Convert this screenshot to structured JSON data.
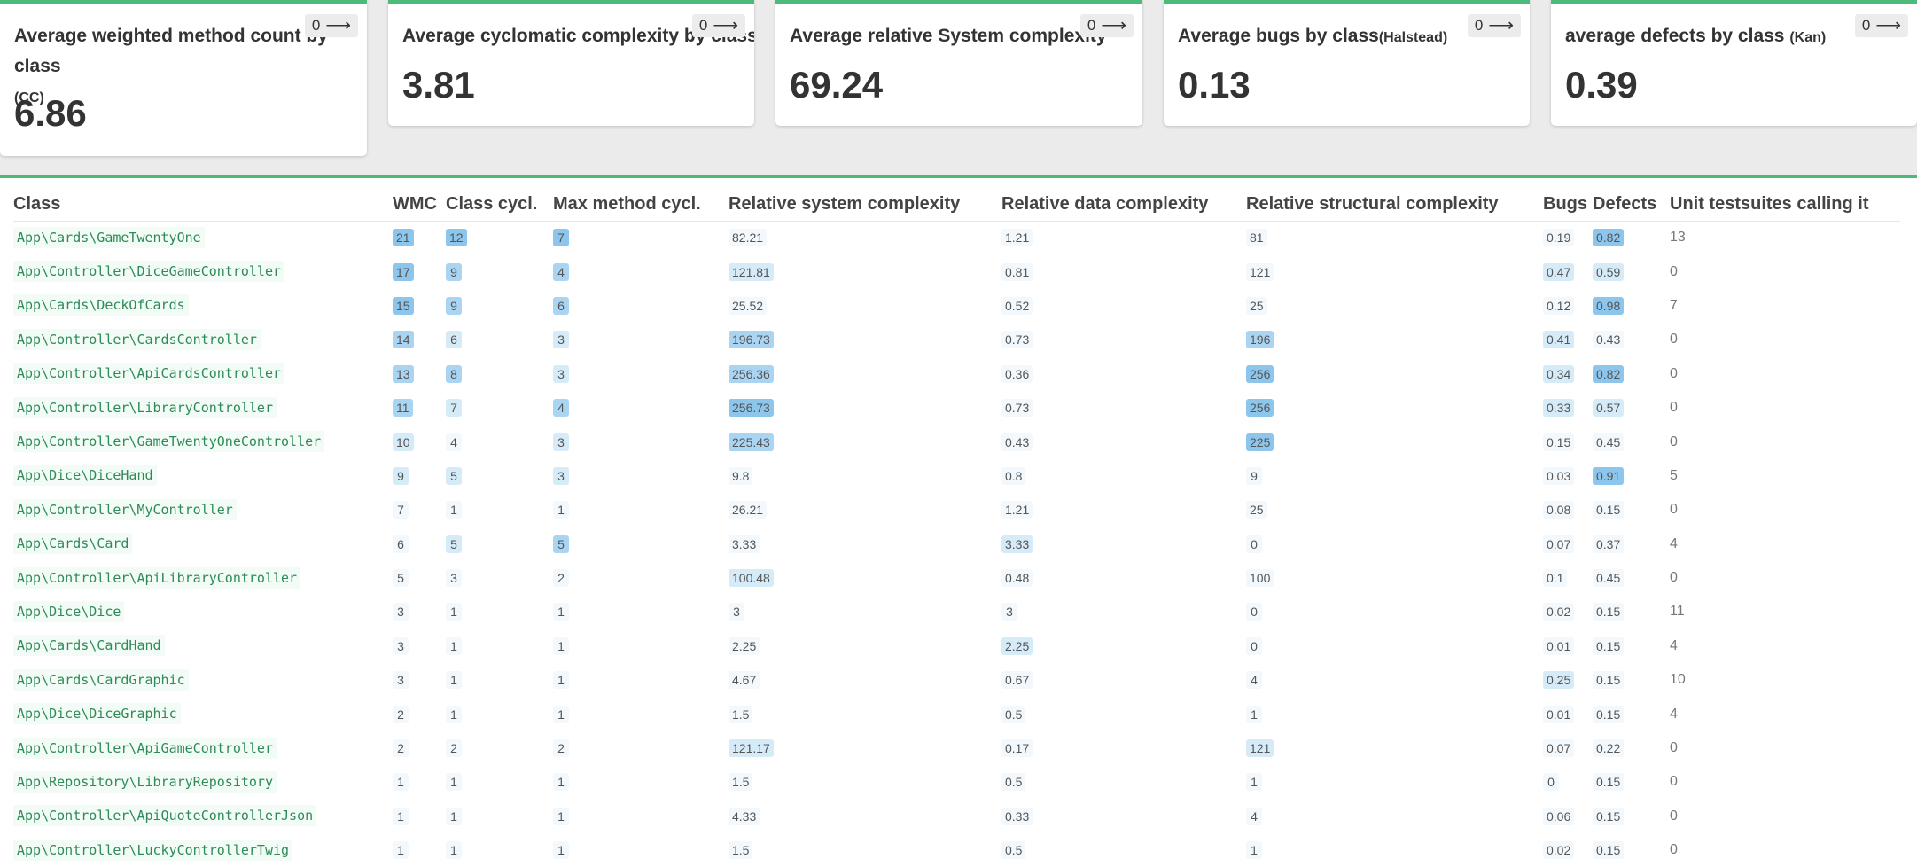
{
  "cards": [
    {
      "title": "Average weighted method count by class",
      "subtitle": "(CC)",
      "value": "6.86",
      "trend": "0"
    },
    {
      "title": "Average cyclomatic complexity by class",
      "value": "3.81",
      "trend": "0"
    },
    {
      "title": "Average relative System complexity",
      "value": "69.24",
      "trend": "0"
    },
    {
      "title": "Average bugs by class",
      "subtitle": "(Halstead)",
      "value": "0.13",
      "trend": "0"
    },
    {
      "title": "average defects by class ",
      "subtitle": "(Kan)",
      "value": "0.39",
      "trend": "0"
    }
  ],
  "table": {
    "headers": [
      "Class",
      "WMC",
      "Class cycl.",
      "Max method cycl.",
      "Relative system complexity",
      "Relative data complexity",
      "Relative structural complexity",
      "Bugs",
      "Defects",
      "Unit testsuites calling it"
    ],
    "rows": [
      [
        "App\\Cards\\GameTwentyOne",
        "21",
        "12",
        "7",
        "82.21",
        "1.21",
        "81",
        "0.19",
        "0.82",
        "13"
      ],
      [
        "App\\Controller\\DiceGameController",
        "17",
        "9",
        "4",
        "121.81",
        "0.81",
        "121",
        "0.47",
        "0.59",
        "0"
      ],
      [
        "App\\Cards\\DeckOfCards",
        "15",
        "9",
        "6",
        "25.52",
        "0.52",
        "25",
        "0.12",
        "0.98",
        "7"
      ],
      [
        "App\\Controller\\CardsController",
        "14",
        "6",
        "3",
        "196.73",
        "0.73",
        "196",
        "0.41",
        "0.43",
        "0"
      ],
      [
        "App\\Controller\\ApiCardsController",
        "13",
        "8",
        "3",
        "256.36",
        "0.36",
        "256",
        "0.34",
        "0.82",
        "0"
      ],
      [
        "App\\Controller\\LibraryController",
        "11",
        "7",
        "4",
        "256.73",
        "0.73",
        "256",
        "0.33",
        "0.57",
        "0"
      ],
      [
        "App\\Controller\\GameTwentyOneController",
        "10",
        "4",
        "3",
        "225.43",
        "0.43",
        "225",
        "0.15",
        "0.45",
        "0"
      ],
      [
        "App\\Dice\\DiceHand",
        "9",
        "5",
        "3",
        "9.8",
        "0.8",
        "9",
        "0.03",
        "0.91",
        "5"
      ],
      [
        "App\\Controller\\MyController",
        "7",
        "1",
        "1",
        "26.21",
        "1.21",
        "25",
        "0.08",
        "0.15",
        "0"
      ],
      [
        "App\\Cards\\Card",
        "6",
        "5",
        "5",
        "3.33",
        "3.33",
        "0",
        "0.07",
        "0.37",
        "4"
      ],
      [
        "App\\Controller\\ApiLibraryController",
        "5",
        "3",
        "2",
        "100.48",
        "0.48",
        "100",
        "0.1",
        "0.45",
        "0"
      ],
      [
        "App\\Dice\\Dice",
        "3",
        "1",
        "1",
        "3",
        "3",
        "0",
        "0.02",
        "0.15",
        "11"
      ],
      [
        "App\\Cards\\CardHand",
        "3",
        "1",
        "1",
        "2.25",
        "2.25",
        "0",
        "0.01",
        "0.15",
        "4"
      ],
      [
        "App\\Cards\\CardGraphic",
        "3",
        "1",
        "1",
        "4.67",
        "0.67",
        "4",
        "0.25",
        "0.15",
        "10"
      ],
      [
        "App\\Dice\\DiceGraphic",
        "2",
        "1",
        "1",
        "1.5",
        "0.5",
        "1",
        "0.01",
        "0.15",
        "4"
      ],
      [
        "App\\Controller\\ApiGameController",
        "2",
        "2",
        "2",
        "121.17",
        "0.17",
        "121",
        "0.07",
        "0.22",
        "0"
      ],
      [
        "App\\Repository\\LibraryRepository",
        "1",
        "1",
        "1",
        "1.5",
        "0.5",
        "1",
        "0",
        "0.15",
        "0"
      ],
      [
        "App\\Controller\\ApiQuoteControllerJson",
        "1",
        "1",
        "1",
        "4.33",
        "0.33",
        "4",
        "0.06",
        "0.15",
        "0"
      ],
      [
        "App\\Controller\\LuckyControllerTwig",
        "1",
        "1",
        "1",
        "1.5",
        "0.5",
        "1",
        "0.02",
        "0.15",
        "0"
      ]
    ],
    "levels": [
      [
        3,
        3,
        3,
        0,
        0,
        0,
        0,
        3
      ],
      [
        3,
        2,
        2,
        1,
        0,
        0,
        1,
        1
      ],
      [
        3,
        2,
        2,
        0,
        0,
        0,
        0,
        3
      ],
      [
        2,
        1,
        1,
        2,
        0,
        2,
        1,
        0
      ],
      [
        2,
        2,
        1,
        2,
        0,
        3,
        1,
        3
      ],
      [
        2,
        1,
        2,
        3,
        0,
        3,
        1,
        1
      ],
      [
        1,
        0,
        1,
        2,
        0,
        3,
        0,
        0
      ],
      [
        1,
        1,
        1,
        0,
        0,
        0,
        0,
        3
      ],
      [
        0,
        0,
        0,
        0,
        0,
        0,
        0,
        0
      ],
      [
        0,
        1,
        2,
        0,
        1,
        0,
        0,
        0
      ],
      [
        0,
        0,
        0,
        1,
        0,
        0,
        0,
        0
      ],
      [
        0,
        0,
        0,
        0,
        0,
        0,
        0,
        0
      ],
      [
        0,
        0,
        0,
        0,
        1,
        0,
        0,
        0
      ],
      [
        0,
        0,
        0,
        0,
        0,
        0,
        1,
        0
      ],
      [
        0,
        0,
        0,
        0,
        0,
        0,
        0,
        0
      ],
      [
        0,
        0,
        0,
        1,
        0,
        1,
        0,
        0
      ],
      [
        0,
        0,
        0,
        0,
        0,
        0,
        0,
        0
      ],
      [
        0,
        0,
        0,
        0,
        0,
        0,
        0,
        0
      ],
      [
        0,
        0,
        0,
        0,
        0,
        0,
        0,
        0
      ]
    ]
  }
}
